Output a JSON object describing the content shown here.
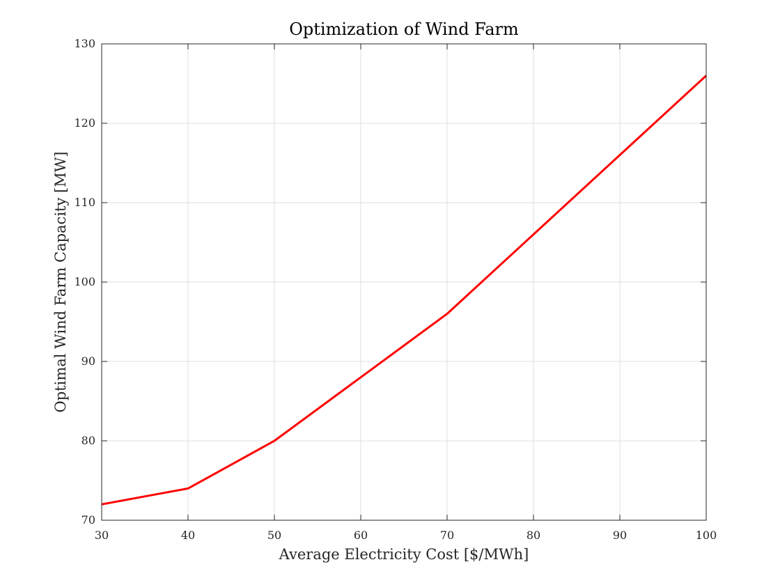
{
  "chart_data": {
    "type": "line",
    "title": "Optimization of Wind Farm",
    "xlabel": "Average Electricity Cost [$/MWh]",
    "ylabel": "Optimal Wind Farm Capacity [MW]",
    "xlim": [
      30,
      100
    ],
    "ylim": [
      70,
      130
    ],
    "xticks": [
      30,
      40,
      50,
      60,
      70,
      80,
      90,
      100
    ],
    "yticks": [
      70,
      80,
      90,
      100,
      110,
      120,
      130
    ],
    "grid": true,
    "series": [
      {
        "x": [
          30,
          40,
          50,
          60,
          70,
          80,
          90,
          100
        ],
        "y": [
          72,
          74,
          80,
          88,
          96,
          106,
          116,
          126
        ],
        "color": "#ff0000"
      }
    ]
  },
  "colors": {
    "axes": "#262626",
    "grid": "#dfdfdf",
    "background": "#ffffff"
  }
}
